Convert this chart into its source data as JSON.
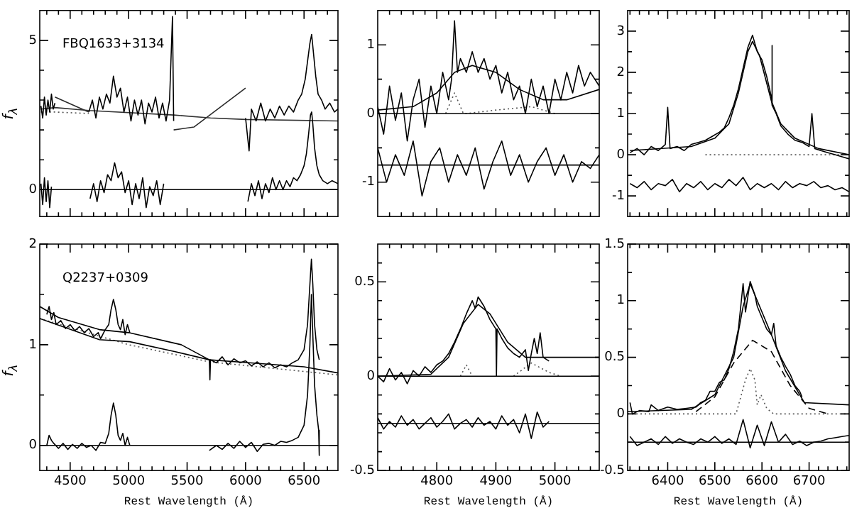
{
  "chart_data": [
    {
      "type": "line",
      "ylabel": "f$_{λ}$",
      "tick_labels": "y",
      "annotations": [
        "FBQ1633+3134"
      ],
      "xlim": [
        4240,
        6790
      ],
      "ylim": [
        -0.9,
        6
      ],
      "xticks": [
        {
          "value": 4300,
          "label": null
        },
        {
          "value": 4400,
          "label": null
        },
        4500,
        {
          "value": 4600,
          "label": null
        },
        {
          "value": 4700,
          "label": null
        },
        {
          "value": 4800,
          "label": null
        },
        {
          "value": 4900,
          "label": null
        },
        5000,
        {
          "value": 5100,
          "label": null
        },
        {
          "value": 5200,
          "label": null
        },
        {
          "value": 5300,
          "label": null
        },
        {
          "value": 5400,
          "label": null
        },
        5500,
        {
          "value": 5600,
          "label": null
        },
        {
          "value": 5700,
          "label": null
        },
        {
          "value": 5800,
          "label": null
        },
        {
          "value": 5900,
          "label": null
        },
        6000,
        {
          "value": 6100,
          "label": null
        },
        {
          "value": 6200,
          "label": null
        },
        {
          "value": 6300,
          "label": null
        },
        {
          "value": 6400,
          "label": null
        },
        6500,
        {
          "value": 6600,
          "label": null
        },
        {
          "value": 6700,
          "label": null
        }
      ],
      "yticks": [
        0,
        {
          "value": 1,
          "label": null
        },
        {
          "value": 2,
          "label": null
        },
        {
          "value": 3,
          "label": null
        },
        {
          "value": 4,
          "label": null
        },
        5
      ],
      "ref_lines": [
        {
          "axis": "y",
          "value": 0
        }
      ],
      "series": [
        {
          "color": "#000000",
          "x": [
            4250,
            4265,
            4280,
            4295,
            4310,
            4325,
            4340,
            4355,
            4370,
            4500,
            4660,
            4690,
            4720,
            4750,
            4780,
            4810,
            4840,
            4870,
            4900,
            4930,
            4960,
            4990,
            5020,
            5050,
            5080,
            5110,
            5140,
            5170,
            5200,
            5230,
            5260,
            5290,
            5320,
            5350,
            5375,
            5385,
            5700,
            6000,
            6030,
            6050,
            6090,
            6130,
            6170,
            6210,
            6250,
            6290,
            6330,
            6370,
            6410,
            6450,
            6480,
            6510,
            6530,
            6550,
            6565,
            6580,
            6600,
            6620,
            6650,
            6680,
            6720,
            6760,
            6790
          ],
          "values": [
            2.8,
            2.4,
            3.1,
            2.5,
            3.0,
            2.6,
            3.2,
            2.7,
            2.9,
            null,
            2.6,
            3.0,
            2.4,
            3.1,
            2.7,
            3.2,
            2.9,
            3.8,
            3.1,
            3.4,
            2.6,
            3.1,
            2.3,
            3.0,
            2.5,
            3.0,
            2.2,
            2.9,
            2.6,
            3.1,
            2.4,
            2.9,
            2.3,
            3.0,
            5.8,
            2.3,
            null,
            2.4,
            1.3,
            2.7,
            2.3,
            2.9,
            2.3,
            2.7,
            2.4,
            2.8,
            2.5,
            2.8,
            2.6,
            3.0,
            3.2,
            3.7,
            4.3,
            4.9,
            5.2,
            4.6,
            3.8,
            3.2,
            3.0,
            2.7,
            2.9,
            2.6,
            2.7
          ]
        },
        {
          "color": "#000000",
          "x": [
            4250,
            4265,
            4280,
            4295,
            4310,
            4325,
            4340,
            4500,
            4670,
            4700,
            4730,
            4760,
            4790,
            4820,
            4850,
            4880,
            4910,
            4940,
            4970,
            5000,
            5030,
            5060,
            5090,
            5120,
            5150,
            5180,
            5210,
            5240,
            5270,
            5300,
            5600,
            6020,
            6050,
            6080,
            6110,
            6140,
            6170,
            6200,
            6230,
            6260,
            6290,
            6320,
            6350,
            6380,
            6410,
            6440,
            6470,
            6500,
            6520,
            6540,
            6555,
            6565,
            6575,
            6590,
            6610,
            6630,
            6660,
            6700,
            6740,
            6790
          ],
          "values": [
            0.2,
            -0.5,
            0.4,
            -0.4,
            0.3,
            -0.6,
            0.1,
            null,
            -0.3,
            0.2,
            -0.4,
            0.3,
            -0.1,
            0.5,
            0.3,
            0.9,
            0.4,
            0.6,
            -0.1,
            0.3,
            -0.5,
            0.2,
            -0.3,
            0.4,
            -0.6,
            0.1,
            -0.2,
            0.3,
            -0.5,
            0.2,
            null,
            -0.4,
            0.2,
            -0.2,
            0.3,
            -0.3,
            0.2,
            -0.1,
            0.4,
            0.0,
            0.3,
            0.0,
            0.3,
            0.1,
            0.4,
            0.3,
            0.5,
            0.8,
            1.2,
            1.9,
            2.5,
            2.6,
            2.2,
            1.4,
            0.8,
            0.5,
            0.3,
            0.2,
            0.3,
            0.2
          ]
        },
        {
          "color": "#333333",
          "x": [
            4250,
            4370,
            4660,
            5385,
            5700,
            6000,
            6790
          ],
          "values": [
            2.7,
            2.75,
            2.65,
            2.5,
            2.4,
            2.35,
            2.3
          ]
        },
        {
          "color": "#2a2a2a",
          "x": [
            4370,
            4660,
            5000,
            5385,
            5560,
            6000
          ],
          "values": [
            3.1,
            2.6,
            null,
            2.0,
            2.1,
            3.4
          ]
        },
        {
          "color": "#555555",
          "line_style": "dotted",
          "x": [
            4250,
            4370,
            4660
          ],
          "values": [
            2.6,
            2.6,
            2.55
          ]
        }
      ]
    },
    {
      "type": "line",
      "tick_labels": "y",
      "xlim": [
        4700,
        5075
      ],
      "ylim": [
        -1.5,
        1.5
      ],
      "xticks": [
        {
          "value": 4720,
          "label": null
        },
        {
          "value": 4740,
          "label": null
        },
        {
          "value": 4760,
          "label": null
        },
        {
          "value": 4780,
          "label": null
        },
        4800,
        {
          "value": 4820,
          "label": null
        },
        {
          "value": 4840,
          "label": null
        },
        {
          "value": 4860,
          "label": null
        },
        {
          "value": 4880,
          "label": null
        },
        4900,
        {
          "value": 4920,
          "label": null
        },
        {
          "value": 4940,
          "label": null
        },
        {
          "value": 4960,
          "label": null
        },
        {
          "value": 4980,
          "label": null
        },
        5000,
        {
          "value": 5020,
          "label": null
        },
        {
          "value": 5040,
          "label": null
        },
        {
          "value": 5060,
          "label": null
        }
      ],
      "yticks": [
        -1,
        {
          "value": -0.5,
          "label": null
        },
        0,
        {
          "value": 0.5,
          "label": null
        },
        1
      ],
      "ref_lines": [
        {
          "axis": "y",
          "value": 0
        },
        {
          "axis": "y",
          "value": -0.75
        }
      ],
      "series": [
        {
          "color": "#000000",
          "x": [
            4700,
            4710,
            4720,
            4730,
            4740,
            4750,
            4760,
            4770,
            4780,
            4790,
            4800,
            4810,
            4820,
            4825,
            4830,
            4835,
            4840,
            4850,
            4860,
            4870,
            4880,
            4890,
            4900,
            4910,
            4920,
            4930,
            4940,
            4950,
            4960,
            4970,
            4980,
            4990,
            5000,
            5010,
            5020,
            5030,
            5040,
            5050,
            5060,
            5075
          ],
          "values": [
            0.1,
            -0.3,
            0.4,
            -0.1,
            0.3,
            -0.4,
            0.2,
            0.5,
            -0.2,
            0.4,
            0.0,
            0.6,
            0.2,
            0.5,
            1.35,
            0.6,
            0.8,
            0.6,
            0.9,
            0.6,
            0.8,
            0.5,
            0.7,
            0.3,
            0.6,
            0.2,
            0.4,
            0.0,
            0.5,
            0.1,
            0.4,
            0.0,
            0.5,
            0.2,
            0.6,
            0.3,
            0.7,
            0.4,
            0.6,
            0.4
          ]
        },
        {
          "color": "#000000",
          "x": [
            4700,
            4715,
            4730,
            4745,
            4760,
            4775,
            4790,
            4805,
            4820,
            4835,
            4850,
            4865,
            4880,
            4895,
            4910,
            4925,
            4940,
            4955,
            4970,
            4985,
            5000,
            5015,
            5030,
            5045,
            5060,
            5075
          ],
          "values": [
            -0.5,
            -1.0,
            -0.6,
            -0.9,
            -0.4,
            -1.2,
            -0.7,
            -0.5,
            -1.0,
            -0.6,
            -0.9,
            -0.5,
            -1.1,
            -0.7,
            -0.4,
            -0.9,
            -0.6,
            -1.0,
            -0.7,
            -0.5,
            -0.9,
            -0.6,
            -1.0,
            -0.7,
            -0.8,
            -0.6
          ]
        },
        {
          "color": "#000000",
          "x": [
            4700,
            4760,
            4800,
            4830,
            4860,
            4900,
            4940,
            4980,
            5020,
            5075
          ],
          "values": [
            0.05,
            0.1,
            0.3,
            0.6,
            0.7,
            0.6,
            0.35,
            0.2,
            0.2,
            0.35
          ]
        },
        {
          "color": "#555555",
          "line_style": "dotted",
          "x": [
            4815,
            4830,
            4845,
            4850,
            4900,
            4960,
            5000
          ],
          "values": [
            0,
            0.3,
            0,
            0,
            0.05,
            0.1,
            0
          ]
        }
      ]
    },
    {
      "type": "line",
      "tick_labels": "y",
      "xlim": [
        6315,
        6785
      ],
      "ylim": [
        -1.5,
        3.5
      ],
      "xticks": [
        {
          "value": 6320,
          "label": null
        },
        {
          "value": 6340,
          "label": null
        },
        {
          "value": 6360,
          "label": null
        },
        {
          "value": 6380,
          "label": null
        },
        6400,
        {
          "value": 6420,
          "label": null
        },
        {
          "value": 6440,
          "label": null
        },
        {
          "value": 6460,
          "label": null
        },
        {
          "value": 6480,
          "label": null
        },
        6500,
        {
          "value": 6520,
          "label": null
        },
        {
          "value": 6540,
          "label": null
        },
        {
          "value": 6560,
          "label": null
        },
        {
          "value": 6580,
          "label": null
        },
        6600,
        {
          "value": 6620,
          "label": null
        },
        {
          "value": 6640,
          "label": null
        },
        {
          "value": 6660,
          "label": null
        },
        {
          "value": 6680,
          "label": null
        },
        6700,
        {
          "value": 6720,
          "label": null
        },
        {
          "value": 6740,
          "label": null
        },
        {
          "value": 6760,
          "label": null
        },
        {
          "value": 6780,
          "label": null
        }
      ],
      "yticks": [
        -1,
        {
          "value": -0.5,
          "label": null
        },
        0,
        {
          "value": 0.5,
          "label": null
        },
        1,
        {
          "value": 1.5,
          "label": null
        },
        2,
        {
          "value": 2.5,
          "label": null
        },
        3
      ],
      "series": [
        {
          "color": "#000000",
          "x": [
            6320,
            6335,
            6350,
            6365,
            6380,
            6395,
            6400,
            6405,
            6420,
            6435,
            6450,
            6465,
            6480,
            6495,
            6510,
            6520,
            6530,
            6540,
            6550,
            6560,
            6570,
            6580,
            6590,
            6600,
            6610,
            6620,
            6621,
            6622,
            6630,
            6640,
            6655,
            6670,
            6685,
            6700,
            6706,
            6712,
            6725,
            6740,
            6755,
            6770,
            6785
          ],
          "values": [
            0.05,
            0.15,
            0.0,
            0.2,
            0.1,
            0.25,
            1.15,
            0.15,
            0.2,
            0.1,
            0.25,
            0.3,
            0.35,
            0.45,
            0.55,
            0.65,
            0.9,
            1.2,
            1.6,
            2.1,
            2.6,
            2.9,
            2.5,
            2.3,
            1.9,
            1.4,
            2.65,
            1.2,
            1.0,
            0.7,
            0.5,
            0.35,
            0.3,
            0.2,
            1.0,
            0.15,
            0.1,
            0.05,
            0.0,
            -0.05,
            -0.1
          ]
        },
        {
          "color": "#000000",
          "x": [
            6320,
            6335,
            6350,
            6365,
            6380,
            6395,
            6410,
            6425,
            6440,
            6455,
            6470,
            6485,
            6500,
            6515,
            6530,
            6545,
            6560,
            6575,
            6590,
            6605,
            6620,
            6635,
            6650,
            6665,
            6680,
            6695,
            6710,
            6725,
            6740,
            6755,
            6770,
            6785
          ],
          "values": [
            -0.7,
            -0.8,
            -0.65,
            -0.85,
            -0.7,
            -0.75,
            -0.6,
            -0.9,
            -0.7,
            -0.8,
            -0.65,
            -0.85,
            -0.7,
            -0.8,
            -0.6,
            -0.75,
            -0.55,
            -0.85,
            -0.7,
            -0.8,
            -0.7,
            -0.85,
            -0.65,
            -0.8,
            -0.7,
            -0.75,
            -0.65,
            -0.8,
            -0.75,
            -0.85,
            -0.8,
            -0.9
          ]
        },
        {
          "color": "#000000",
          "x": [
            6320,
            6450,
            6500,
            6530,
            6550,
            6570,
            6580,
            6595,
            6620,
            6640,
            6670,
            6720,
            6785
          ],
          "values": [
            0.1,
            0.2,
            0.4,
            0.75,
            1.5,
            2.5,
            2.75,
            2.4,
            1.3,
            0.75,
            0.4,
            0.15,
            0.0
          ]
        },
        {
          "color": "#555555",
          "line_style": "dotted",
          "x": [
            6480,
            6785
          ],
          "values": [
            0,
            0
          ]
        }
      ]
    },
    {
      "type": "line",
      "ylabel": "f$_{λ}$",
      "annotations": [
        "Q2237+0309"
      ],
      "xlim": [
        4240,
        6790
      ],
      "ylim": [
        -0.25,
        2
      ],
      "xticks": [
        {
          "value": 4300,
          "label": null
        },
        {
          "value": 4400,
          "label": null
        },
        4500,
        {
          "value": 4600,
          "label": null
        },
        {
          "value": 4700,
          "label": null
        },
        {
          "value": 4800,
          "label": null
        },
        {
          "value": 4900,
          "label": null
        },
        5000,
        {
          "value": 5100,
          "label": null
        },
        {
          "value": 5200,
          "label": null
        },
        {
          "value": 5300,
          "label": null
        },
        {
          "value": 5400,
          "label": null
        },
        5500,
        {
          "value": 5600,
          "label": null
        },
        {
          "value": 5700,
          "label": null
        },
        {
          "value": 5800,
          "label": null
        },
        {
          "value": 5900,
          "label": null
        },
        6000,
        {
          "value": 6100,
          "label": null
        },
        {
          "value": 6200,
          "label": null
        },
        {
          "value": 6300,
          "label": null
        },
        {
          "value": 6400,
          "label": null
        },
        6500,
        {
          "value": 6600,
          "label": null
        },
        {
          "value": 6700,
          "label": null
        }
      ],
      "yticks": [
        0,
        {
          "value": 0.5,
          "label": null
        },
        1,
        {
          "value": 1.5,
          "label": null
        },
        2
      ],
      "xlabel": "Rest Wavelength (Å)",
      "ref_lines": [
        {
          "axis": "y",
          "value": 0
        }
      ],
      "series": [
        {
          "color": "#000000",
          "x": [
            4300,
            4320,
            4340,
            4360,
            4380,
            4420,
            4460,
            4500,
            4540,
            4580,
            4620,
            4660,
            4700,
            4740,
            4760,
            4800,
            4830,
            4850,
            4870,
            4890,
            4910,
            4930,
            4950,
            4970,
            4990,
            5010,
            5300,
            5690,
            5695,
            5700,
            5750,
            5800,
            5850,
            5900,
            5950,
            6000,
            6050,
            6100,
            6150,
            6200,
            6250,
            6300,
            6350,
            6400,
            6450,
            6500,
            6530,
            6550,
            6563,
            6575,
            6590,
            6610,
            6630
          ],
          "values": [
            1.3,
            1.38,
            1.25,
            1.32,
            1.2,
            1.24,
            1.16,
            1.2,
            1.14,
            1.18,
            1.12,
            1.16,
            1.08,
            1.12,
            1.06,
            1.15,
            1.2,
            1.35,
            1.45,
            1.35,
            1.2,
            1.15,
            1.25,
            1.1,
            1.2,
            1.12,
            null,
            0.85,
            0.65,
            0.85,
            0.82,
            0.88,
            0.8,
            0.86,
            0.82,
            0.84,
            0.79,
            0.83,
            0.78,
            0.82,
            0.77,
            0.8,
            0.78,
            0.82,
            0.85,
            0.95,
            1.2,
            1.6,
            1.85,
            1.6,
            1.2,
            0.95,
            0.85
          ]
        },
        {
          "color": "#000000",
          "x": [
            4300,
            4320,
            4340,
            4360,
            4400,
            4440,
            4480,
            4520,
            4560,
            4600,
            4640,
            4680,
            4720,
            4760,
            4800,
            4830,
            4850,
            4870,
            4890,
            4910,
            4930,
            4950,
            4970,
            4990,
            5010,
            5300,
            5690,
            5750,
            5800,
            5850,
            5900,
            5950,
            6000,
            6050,
            6100,
            6150,
            6200,
            6250,
            6300,
            6350,
            6400,
            6450,
            6500,
            6530,
            6550,
            6563,
            6575,
            6590,
            6610,
            6625,
            6630
          ],
          "values": [
            0.0,
            0.1,
            0.05,
            0.02,
            -0.03,
            0.02,
            -0.04,
            0.01,
            -0.03,
            0.02,
            -0.02,
            0.0,
            -0.05,
            0.03,
            0.02,
            0.12,
            0.3,
            0.42,
            0.3,
            0.1,
            0.05,
            0.12,
            0.0,
            0.08,
            0.0,
            null,
            -0.05,
            0.0,
            -0.04,
            0.02,
            -0.03,
            0.04,
            -0.02,
            0.03,
            -0.06,
            0.01,
            0.02,
            0.0,
            0.04,
            0.03,
            0.05,
            0.08,
            0.2,
            0.5,
            1.0,
            1.5,
            1.1,
            0.6,
            0.3,
            0.15,
            -0.1
          ]
        },
        {
          "color": "#000000",
          "x": [
            4240,
            4400,
            4750,
            5000,
            5450,
            5690
          ],
          "values": [
            1.38,
            1.27,
            1.15,
            1.12,
            1.0,
            0.85
          ]
        },
        {
          "color": "#000000",
          "x": [
            4240,
            4750,
            5010,
            5400,
            5690,
            6500,
            6790
          ],
          "values": [
            1.26,
            1.05,
            1.03,
            0.93,
            0.85,
            0.78,
            0.72
          ]
        },
        {
          "color": "#555555",
          "line_style": "dotted",
          "x": [
            4240,
            5000,
            5690,
            6790
          ],
          "values": [
            1.26,
            1.0,
            0.83,
            0.7
          ]
        }
      ]
    },
    {
      "type": "line",
      "xlim": [
        4700,
        5075
      ],
      "ylim": [
        -0.5,
        0.7
      ],
      "xlabel": "Rest Wavelength (Å)",
      "xticks": [
        {
          "value": 4720,
          "label": null
        },
        {
          "value": 4740,
          "label": null
        },
        {
          "value": 4760,
          "label": null
        },
        {
          "value": 4780,
          "label": null
        },
        4800,
        {
          "value": 4820,
          "label": null
        },
        {
          "value": 4840,
          "label": null
        },
        {
          "value": 4860,
          "label": null
        },
        {
          "value": 4880,
          "label": null
        },
        4900,
        {
          "value": 4920,
          "label": null
        },
        {
          "value": 4940,
          "label": null
        },
        {
          "value": 4960,
          "label": null
        },
        {
          "value": 4980,
          "label": null
        },
        5000,
        {
          "value": 5020,
          "label": null
        },
        {
          "value": 5040,
          "label": null
        },
        {
          "value": 5060,
          "label": null
        }
      ],
      "yticks": [
        -0.5,
        {
          "value": -0.4,
          "label": null
        },
        {
          "value": -0.3,
          "label": null
        },
        {
          "value": -0.2,
          "label": null
        },
        {
          "value": -0.1,
          "label": null
        },
        0,
        {
          "value": 0.1,
          "label": null
        },
        {
          "value": 0.2,
          "label": null
        },
        {
          "value": 0.3,
          "label": null
        },
        {
          "value": 0.4,
          "label": null
        },
        0.5,
        {
          "value": 0.6,
          "label": null
        }
      ],
      "ref_lines": [
        {
          "axis": "y",
          "value": 0
        },
        {
          "axis": "y",
          "value": -0.25
        }
      ],
      "series": [
        {
          "color": "#000000",
          "x": [
            4700,
            4710,
            4720,
            4730,
            4740,
            4750,
            4760,
            4770,
            4780,
            4790,
            4800,
            4810,
            4820,
            4830,
            4840,
            4850,
            4860,
            4865,
            4870,
            4880,
            4890,
            4900,
            4901,
            4902,
            4910,
            4920,
            4930,
            4940,
            4950,
            4955,
            4960,
            4965,
            4970,
            4975,
            4980,
            4990
          ],
          "values": [
            0.0,
            -0.03,
            0.04,
            -0.02,
            0.02,
            -0.04,
            0.03,
            0.0,
            0.05,
            0.02,
            0.06,
            0.08,
            0.12,
            0.18,
            0.25,
            0.33,
            0.4,
            0.36,
            0.42,
            0.37,
            0.3,
            0.25,
            0.0,
            0.25,
            0.2,
            0.15,
            0.12,
            0.1,
            0.14,
            0.03,
            0.12,
            0.2,
            0.12,
            0.23,
            0.1,
            0.08
          ]
        },
        {
          "color": "#000000",
          "x": [
            4700,
            4710,
            4720,
            4730,
            4740,
            4750,
            4760,
            4770,
            4780,
            4790,
            4800,
            4810,
            4820,
            4830,
            4840,
            4850,
            4860,
            4870,
            4880,
            4890,
            4900,
            4910,
            4920,
            4930,
            4940,
            4950,
            4960,
            4970,
            4980,
            4990
          ],
          "values": [
            -0.22,
            -0.28,
            -0.24,
            -0.27,
            -0.21,
            -0.26,
            -0.23,
            -0.28,
            -0.25,
            -0.22,
            -0.27,
            -0.24,
            -0.2,
            -0.28,
            -0.25,
            -0.23,
            -0.27,
            -0.22,
            -0.26,
            -0.24,
            -0.28,
            -0.21,
            -0.26,
            -0.23,
            -0.3,
            -0.2,
            -0.33,
            -0.19,
            -0.27,
            -0.24
          ]
        },
        {
          "color": "#000000",
          "x": [
            4700,
            4790,
            4820,
            4845,
            4870,
            4890,
            4920,
            4950,
            4990,
            5075
          ],
          "values": [
            0.0,
            0.01,
            0.1,
            0.28,
            0.38,
            0.33,
            0.18,
            0.1,
            0.1,
            0.1
          ]
        },
        {
          "color": "#555555",
          "line_style": "dotted",
          "x": [
            4840,
            4850,
            4860,
            4900,
            4930,
            4960,
            4990,
            5010
          ],
          "values": [
            0,
            0.06,
            0,
            null,
            0,
            0.07,
            0.02,
            0
          ]
        }
      ]
    },
    {
      "type": "line",
      "xlim": [
        6315,
        6785
      ],
      "ylim": [
        -0.5,
        1.5
      ],
      "xlabel": "Rest Wavelength (Å)",
      "xticks": [
        {
          "value": 6320,
          "label": null
        },
        {
          "value": 6340,
          "label": null
        },
        {
          "value": 6360,
          "label": null
        },
        {
          "value": 6380,
          "label": null
        },
        6400,
        {
          "value": 6420,
          "label": null
        },
        {
          "value": 6440,
          "label": null
        },
        {
          "value": 6460,
          "label": null
        },
        {
          "value": 6480,
          "label": null
        },
        6500,
        {
          "value": 6520,
          "label": null
        },
        {
          "value": 6540,
          "label": null
        },
        {
          "value": 6560,
          "label": null
        },
        {
          "value": 6580,
          "label": null
        },
        6600,
        {
          "value": 6620,
          "label": null
        },
        {
          "value": 6640,
          "label": null
        },
        {
          "value": 6660,
          "label": null
        },
        {
          "value": 6680,
          "label": null
        },
        6700,
        {
          "value": 6720,
          "label": null
        },
        {
          "value": 6740,
          "label": null
        },
        {
          "value": 6760,
          "label": null
        },
        {
          "value": 6780,
          "label": null
        }
      ],
      "yticks": [
        -0.5,
        {
          "value": -0.25,
          "label": null
        },
        0,
        {
          "value": 0.25,
          "label": null
        },
        0.5,
        {
          "value": 0.75,
          "label": null
        },
        1,
        {
          "value": 1.25,
          "label": null
        },
        1.5
      ],
      "ref_lines": [
        {
          "axis": "y",
          "value": -0.25
        }
      ],
      "series": [
        {
          "color": "#000000",
          "x": [
            6320,
            6325,
            6340,
            6360,
            6365,
            6380,
            6400,
            6420,
            6440,
            6460,
            6470,
            6480,
            6490,
            6500,
            6510,
            6520,
            6530,
            6540,
            6550,
            6560,
            6565,
            6575,
            6585,
            6590,
            6600,
            6610,
            6620,
            6625,
            6630,
            6640,
            6650,
            6660,
            6670,
            6680,
            6685
          ],
          "values": [
            0.1,
            0.0,
            0.03,
            0.02,
            0.08,
            0.03,
            0.06,
            0.04,
            0.05,
            0.06,
            0.1,
            0.12,
            0.2,
            0.2,
            0.28,
            0.3,
            0.4,
            0.55,
            0.75,
            1.15,
            0.9,
            1.17,
            1.05,
            0.95,
            0.85,
            0.75,
            0.7,
            0.8,
            0.6,
            0.5,
            0.42,
            0.35,
            0.25,
            0.2,
            0.15
          ]
        },
        {
          "color": "#000000",
          "x": [
            6320,
            6335,
            6350,
            6365,
            6380,
            6395,
            6410,
            6425,
            6440,
            6455,
            6470,
            6485,
            6500,
            6515,
            6530,
            6545,
            6560,
            6575,
            6590,
            6605,
            6620,
            6635,
            6650,
            6665,
            6680,
            6695,
            6710,
            6725,
            6740,
            6755,
            6770,
            6785
          ],
          "values": [
            -0.2,
            -0.28,
            -0.25,
            -0.22,
            -0.27,
            -0.2,
            -0.26,
            -0.22,
            -0.25,
            -0.27,
            -0.22,
            -0.25,
            -0.2,
            -0.26,
            -0.22,
            -0.27,
            -0.05,
            -0.3,
            -0.1,
            -0.28,
            -0.07,
            -0.25,
            -0.18,
            -0.27,
            -0.24,
            -0.28,
            -0.25,
            -0.24,
            -0.22,
            -0.21,
            -0.2,
            -0.19
          ]
        },
        {
          "color": "#000000",
          "x": [
            6315,
            6450,
            6500,
            6540,
            6560,
            6575,
            6590,
            6620,
            6650,
            6690,
            6785
          ],
          "values": [
            0.02,
            0.04,
            0.17,
            0.5,
            0.95,
            1.15,
            1.0,
            0.7,
            0.38,
            0.1,
            0.08
          ]
        },
        {
          "color": "#000000",
          "line_style": "dashed",
          "x": [
            6460,
            6500,
            6540,
            6580,
            6620,
            6660,
            6700,
            6740
          ],
          "values": [
            0.02,
            0.15,
            0.45,
            0.65,
            0.55,
            0.25,
            0.05,
            0.0
          ]
        },
        {
          "color": "#555555",
          "line_style": "dotted",
          "x": [
            6315,
            6545,
            6565,
            6575,
            6585,
            6590,
            6598,
            6610,
            6625,
            6785
          ],
          "values": [
            0,
            0,
            0.3,
            0.4,
            0.3,
            0.08,
            0.17,
            0.05,
            0,
            0
          ]
        }
      ]
    }
  ]
}
